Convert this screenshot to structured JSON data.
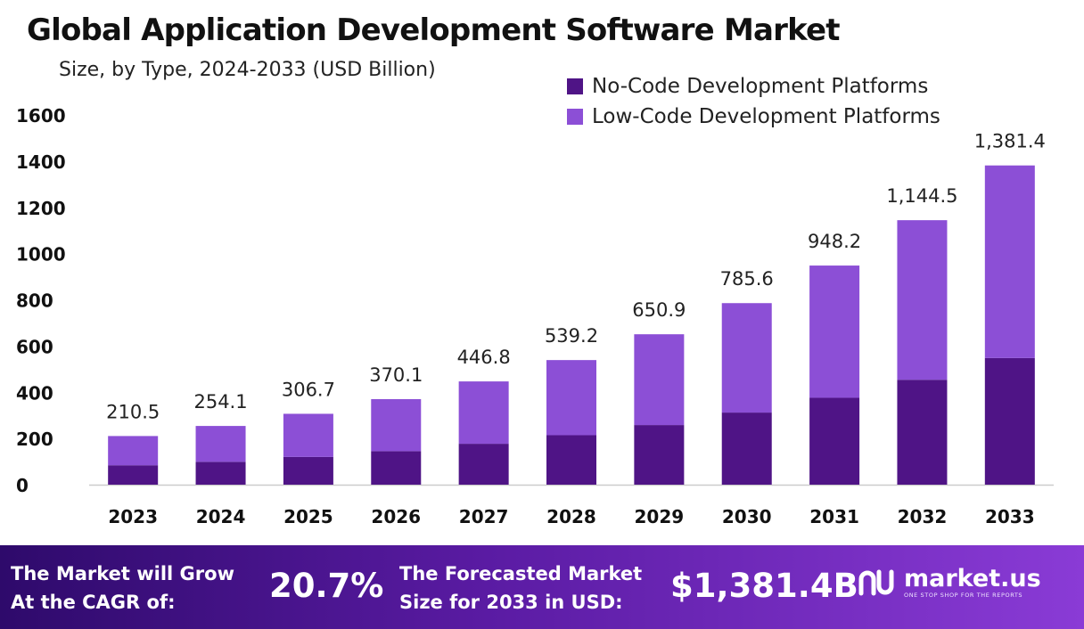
{
  "title": "Global Application Development Software Market",
  "subtitle": "Size, by Type, 2024-2033 (USD Billion)",
  "colors": {
    "no_code": "#4f1486",
    "low_code": "#8c4fd6",
    "axis_line": "#cccccc"
  },
  "chart_data": {
    "type": "bar",
    "stacked": true,
    "categories": [
      "2023",
      "2024",
      "2025",
      "2026",
      "2027",
      "2028",
      "2029",
      "2030",
      "2031",
      "2032",
      "2033"
    ],
    "series": [
      {
        "name": "No-Code Development Platforms",
        "values": [
          84,
          99,
          120,
          145,
          177,
          214,
          258,
          312,
          376,
          454,
          548
        ]
      },
      {
        "name": "Low-Code Development Platforms",
        "values": [
          126.5,
          155.1,
          186.7,
          225.1,
          269.8,
          325.2,
          392.9,
          473.6,
          572.2,
          690.5,
          833.4
        ]
      }
    ],
    "totals": [
      210.5,
      254.1,
      306.7,
      370.1,
      446.8,
      539.2,
      650.9,
      785.6,
      948.2,
      1144.5,
      1381.4
    ],
    "total_labels": [
      "210.5",
      "254.1",
      "306.7",
      "370.1",
      "446.8",
      "539.2",
      "650.9",
      "785.6",
      "948.2",
      "1,144.5",
      "1,381.4"
    ],
    "y_ticks": [
      "0",
      "200",
      "400",
      "600",
      "800",
      "1000",
      "1200",
      "1400",
      "1600"
    ],
    "ylim": [
      0,
      1600
    ],
    "legend_position": "top-right",
    "grid": false
  },
  "footer": {
    "cagr_line1": "The Market will Grow",
    "cagr_line2": "At the CAGR of:",
    "cagr_value": "20.7%",
    "forecast_line1": "The Forecasted Market",
    "forecast_line2": "Size for 2033 in USD:",
    "forecast_value": "$1,381.4B",
    "brand_name": "market.us",
    "brand_tagline": "ONE STOP SHOP FOR THE REPORTS"
  }
}
